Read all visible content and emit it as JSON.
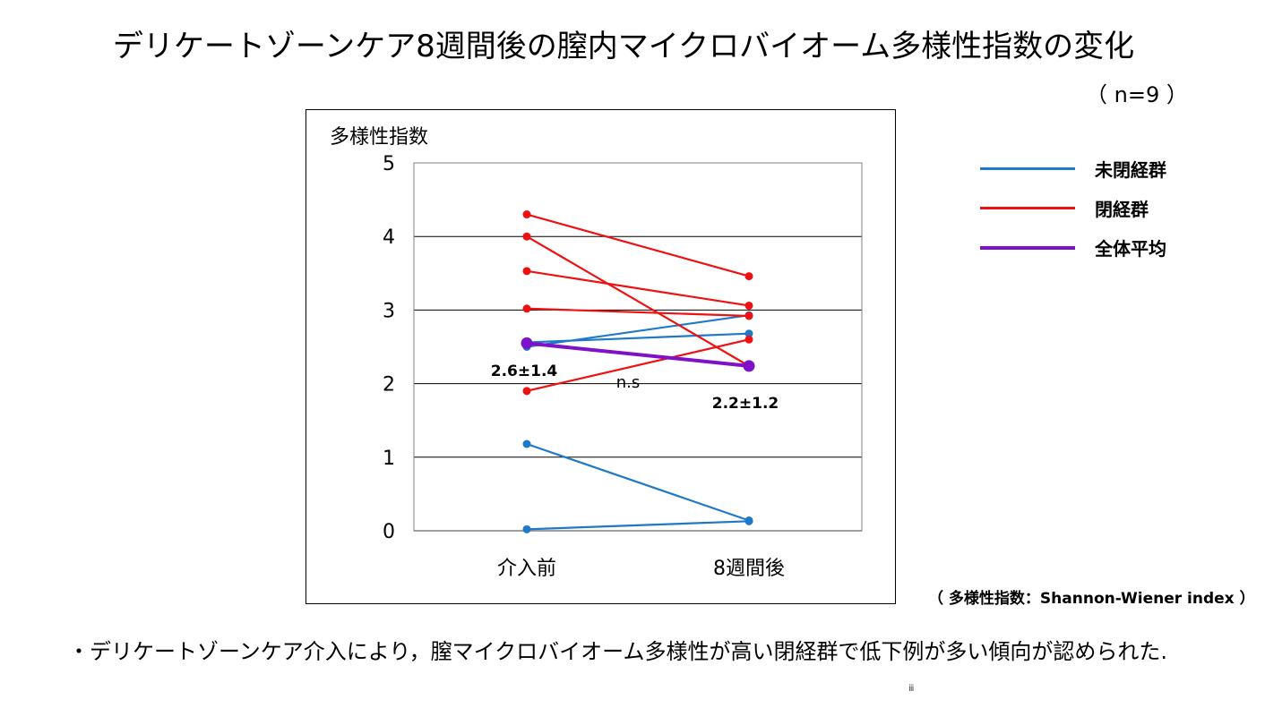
{
  "title": "デリケートゾーンケア8週間後の膣内マイクロバイオーム多様性指数の変化",
  "sample_size": "（ n=9 ）",
  "index_note": "（ 多様性指数：Shannon-Wiener index ）",
  "conclusion": "・デリケートゾーンケア介入により，膣マイクロバイオーム多様性が高い閉経群で低下例が多い傾向が認められた.",
  "stray_mark": "ⅲ",
  "colors": {
    "premenopausal": "#1F78C8",
    "postmenopausal": "#EE1111",
    "average": "#7F12C8",
    "grid": "#000000"
  },
  "legend": [
    {
      "label": "未閉経群",
      "color": "#1F78C8"
    },
    {
      "label": "閉経群",
      "color": "#EE1111"
    },
    {
      "label": "全体平均",
      "color": "#7F12C8"
    }
  ],
  "chart_data": {
    "type": "line",
    "ylabel": "多様性指数",
    "categories": [
      "介入前",
      "8週間後"
    ],
    "ylim": [
      0,
      5
    ],
    "yticks": [
      "0",
      "1",
      "2",
      "3",
      "4",
      "5"
    ],
    "grid": true,
    "legend_position": "right",
    "series": [
      {
        "group": "未閉経群",
        "values": [
          2.5,
          2.93
        ]
      },
      {
        "group": "未閉経群",
        "values": [
          2.56,
          2.68
        ]
      },
      {
        "group": "未閉経群",
        "values": [
          1.18,
          0.14
        ]
      },
      {
        "group": "未閉経群",
        "values": [
          0.02,
          0.13
        ]
      },
      {
        "group": "閉経群",
        "values": [
          4.3,
          3.46
        ]
      },
      {
        "group": "閉経群",
        "values": [
          4.0,
          2.24
        ]
      },
      {
        "group": "閉経群",
        "values": [
          3.53,
          3.06
        ]
      },
      {
        "group": "閉経群",
        "values": [
          3.02,
          2.92
        ]
      },
      {
        "group": "閉経群",
        "values": [
          1.9,
          2.6
        ]
      },
      {
        "group": "全体平均",
        "values": [
          2.55,
          2.24
        ]
      }
    ],
    "annotations": {
      "before_mean": "2.6±1.4",
      "after_mean": "2.2±1.2",
      "significance": "n.s"
    }
  }
}
